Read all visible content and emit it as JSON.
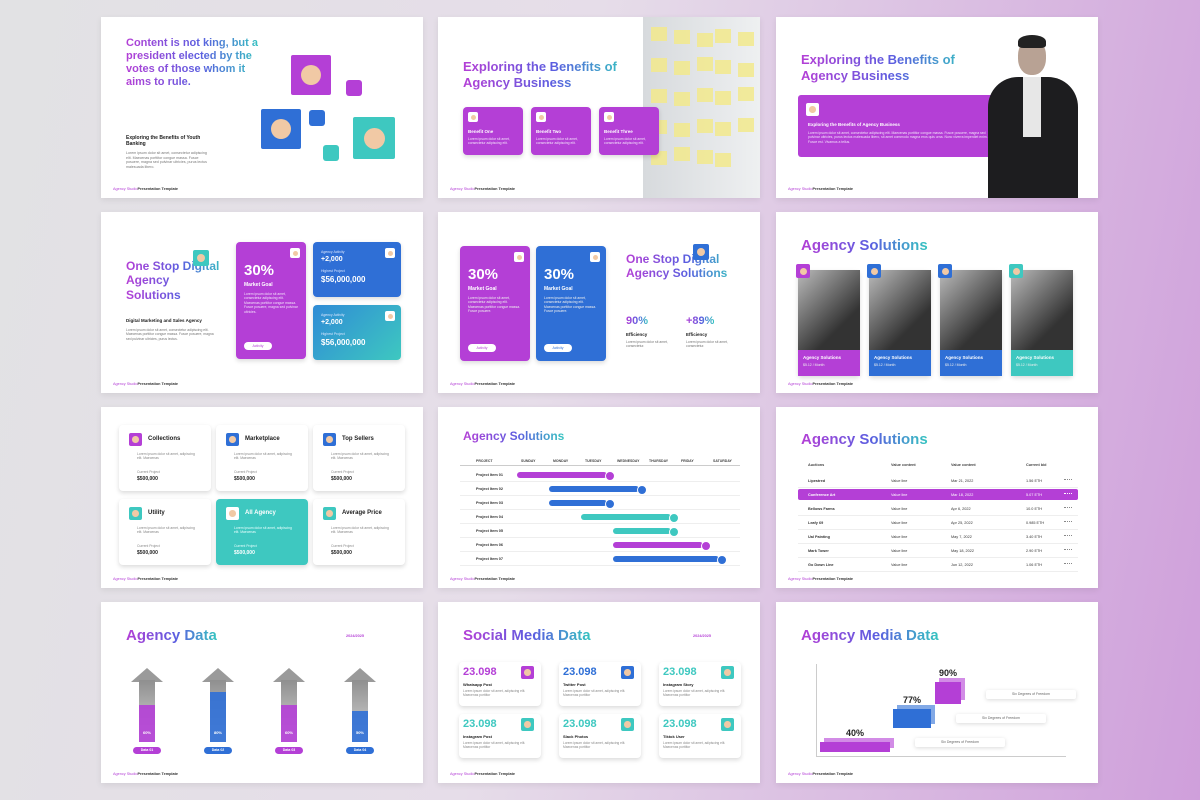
{
  "footer": {
    "brand": "Agency Studio",
    "label": "Presentation Template"
  },
  "slides": [
    {
      "quote": "Content is not king, but a president elected by the votes of those whom it aims to rule.",
      "subtitle": "Exploring the Benefits of Youth Banking",
      "body": "Lorem ipsum dolor sit amet, consectetur adipiscing elit. Maecenas porttitor congue massa. Fusce posuere, magna sed pulvinar ultricies, purus lectus malesuada libero."
    },
    {
      "title": "Exploring the Benefits of Agency Business",
      "cards": [
        {
          "name": "Benefit One",
          "body": "Lorem ipsum dolor sit amet, consectetur adipiscing elit."
        },
        {
          "name": "Benefit Two",
          "body": "Lorem ipsum dolor sit amet, consectetur adipiscing elit."
        },
        {
          "name": "Benefit Three",
          "body": "Lorem ipsum dolor sit amet, consectetur adipiscing elit."
        }
      ]
    },
    {
      "title": "Exploring the Benefits of Agency Business",
      "heading": "Exploring the Benefits of Agency Business",
      "body": "Lorem ipsum dolor sit amet, consectetur adipiscing elit. Maecenas porttitor congue massa. Fusce posuere, magna sed pulvinar ultricies, purus lectus malesuada libero, sit amet commodo magna eros quis urna. Nunc viverra imperdiet enim. Fusce est. Vivamus a tellus."
    },
    {
      "title": "One Stop Digital Agency Solutions",
      "subtitle": "Digital Marketing and Sales Agency",
      "body": "Lorem ipsum dolor sit amet, consectetur adipiscing elit. Maecenas porttitor congue massa. Fusce posuere, magna sed pulvinar ultricies, purus lectus.",
      "big": {
        "value": "30%",
        "label": "Market Goal",
        "body": "Lorem ipsum dolor sit amet, consectetur adipiscing elit. Maecenas porttitor congue massa. Fusce posuere, magna sed pulvinar ultricies.",
        "button": "Activity"
      },
      "small": [
        {
          "kicker": "Agency Activity",
          "value": "+2,000",
          "label": "Highest Project",
          "amount": "$56,000,000"
        },
        {
          "kicker": "Agency Activity",
          "value": "+2,000",
          "label": "Highest Project",
          "amount": "$56,000,000"
        }
      ]
    },
    {
      "title": "One Stop Digital Agency Solutions",
      "cards": [
        {
          "value": "30%",
          "label": "Market Goal",
          "body": "Lorem ipsum dolor sit amet, consectetur adipiscing elit. Maecenas porttitor congue massa. Fusce posuere.",
          "button": "Activity"
        },
        {
          "value": "30%",
          "label": "Market Goal",
          "body": "Lorem ipsum dolor sit amet, consectetur adipiscing elit. Maecenas porttitor congue massa. Fusce posuere.",
          "button": "Activity"
        }
      ],
      "stats": [
        {
          "value": "90%",
          "label": "Efficiency",
          "body": "Lorem ipsum dolor sit amet, consectetur."
        },
        {
          "value": "+89%",
          "label": "Efficiency",
          "body": "Lorem ipsum dolor sit amet, consectetur."
        }
      ]
    },
    {
      "title": "Agency Solutions",
      "cards": [
        {
          "name": "Agency Solutions",
          "price": "$5.12 / Month"
        },
        {
          "name": "Agency Solutions",
          "price": "$5.12 / Month"
        },
        {
          "name": "Agency Solutions",
          "price": "$5.12 / Month"
        },
        {
          "name": "Agency Solutions",
          "price": "$5.12 / Month"
        }
      ]
    },
    {
      "items": [
        {
          "name": "Collections",
          "body": "Lorem ipsum dolor sit amet, adipiscing elit. Maecenas",
          "label": "Current Project",
          "amount": "$500,000"
        },
        {
          "name": "Marketplace",
          "body": "Lorem ipsum dolor sit amet, adipiscing elit. Maecenas",
          "label": "Current Project",
          "amount": "$500,000"
        },
        {
          "name": "Top Sellers",
          "body": "Lorem ipsum dolor sit amet, adipiscing elit. Maecenas",
          "label": "Current Project",
          "amount": "$500,000"
        },
        {
          "name": "Utility",
          "body": "Lorem ipsum dolor sit amet, adipiscing elit. Maecenas",
          "label": "Current Project",
          "amount": "$500,000"
        },
        {
          "name": "All Agency",
          "body": "Lorem ipsum dolor sit amet, adipiscing elit. Maecenas",
          "label": "Current Project",
          "amount": "$500,000"
        },
        {
          "name": "Average Price",
          "body": "Lorem ipsum dolor sit amet, adipiscing elit. Maecenas",
          "label": "Current Project",
          "amount": "$500,000"
        }
      ]
    },
    {
      "title": "Agency Solutions",
      "columns": [
        "PROJECT",
        "SUNDAY",
        "MONDAY",
        "TUESDAY",
        "WEDNESDAY",
        "THURSDAY",
        "FRIDAY",
        "SATURDAY"
      ],
      "rows": [
        {
          "name": "Project Item 01",
          "start": 0,
          "end": 2.8,
          "color": "#b43fd6"
        },
        {
          "name": "Project Item 02",
          "start": 1,
          "end": 3.8,
          "color": "#2f6fd6"
        },
        {
          "name": "Project Item 03",
          "start": 1,
          "end": 2.8,
          "color": "#2f6fd6"
        },
        {
          "name": "Project Item 04",
          "start": 2,
          "end": 4.8,
          "color": "#3ec8c0"
        },
        {
          "name": "Project Item 05",
          "start": 3,
          "end": 4.8,
          "color": "#3ec8c0"
        },
        {
          "name": "Project Item 06",
          "start": 3,
          "end": 5.8,
          "color": "#b43fd6"
        },
        {
          "name": "Project Item 07",
          "start": 3,
          "end": 6.3,
          "color": "#2f6fd6"
        }
      ]
    },
    {
      "title": "Agency Solutions",
      "header": [
        "Auctions",
        "Value content",
        "Value content",
        "Current bid"
      ],
      "rows": [
        [
          "Lipestred",
          "Value line",
          "Mar 21, 2022",
          "1.56 ETH"
        ],
        [
          "Conference Art",
          "Value line",
          "Mar 18, 2022",
          "5.07 ETH"
        ],
        [
          "Bellows Farms",
          "Value line",
          "Apr 6, 2022",
          "10.0 ETH"
        ],
        [
          "Leafy 69",
          "Value line",
          "Apr 25, 2022",
          "0.985 ETH"
        ],
        [
          "Ual Painting",
          "Value line",
          "May 7, 2022",
          "3.40 ETH"
        ],
        [
          "Mark Tower",
          "Value line",
          "May 18, 2022",
          "2.90 ETH"
        ],
        [
          "Go Down Line",
          "Value line",
          "Jun 12, 2022",
          "1.06 ETH"
        ]
      ]
    },
    {
      "title": "Agency Data",
      "year": "2024/2025",
      "bars": [
        {
          "name": "Data 01",
          "value": 60,
          "value_label": "60%",
          "color": "#b43fd6"
        },
        {
          "name": "Data 02",
          "value": 80,
          "value_label": "80%",
          "color": "#2f6fd6"
        },
        {
          "name": "Data 03",
          "value": 60,
          "value_label": "60%",
          "color": "#b43fd6"
        },
        {
          "name": "Data 04",
          "value": 50,
          "value_label": "50%",
          "color": "#2f6fd6"
        }
      ]
    },
    {
      "title": "Social Media Data",
      "year": "2024/2025",
      "items": [
        {
          "value": "23.098",
          "name": "Whatsapp Post",
          "body": "Lorem ipsum dolor sit amet, adipiscing elit. Maecenas porttitor",
          "color": "#b43fd6"
        },
        {
          "value": "23.098",
          "name": "Twitter Post",
          "body": "Lorem ipsum dolor sit amet, adipiscing elit. Maecenas porttitor",
          "color": "#2f6fd6"
        },
        {
          "value": "23.098",
          "name": "Instagram Story",
          "body": "Lorem ipsum dolor sit amet, adipiscing elit. Maecenas porttitor",
          "color": "#3ec8c0"
        },
        {
          "value": "23.098",
          "name": "Instagram Post",
          "body": "Lorem ipsum dolor sit amet, adipiscing elit. Maecenas porttitor",
          "color": "#3ec8c0"
        },
        {
          "value": "23.098",
          "name": "Slack Photos",
          "body": "Lorem ipsum dolor sit amet, adipiscing elit. Maecenas porttitor",
          "color": "#3ec8c0"
        },
        {
          "value": "23.098",
          "name": "Tiktok User",
          "body": "Lorem ipsum dolor sit amet, adipiscing elit. Maecenas porttitor",
          "color": "#3ec8c0"
        }
      ]
    },
    {
      "title": "Agency Media Data",
      "bars": [
        {
          "value": 40,
          "value_label": "40%",
          "note": "Six Degrees of Freedom",
          "color": "#b43fd6"
        },
        {
          "value": 77,
          "value_label": "77%",
          "note": "Six Degrees of Freedom",
          "color": "#2f6fd6"
        },
        {
          "value": 90,
          "value_label": "90%",
          "note": "Six Degrees of Freedom",
          "color": "#b43fd6"
        }
      ]
    }
  ]
}
